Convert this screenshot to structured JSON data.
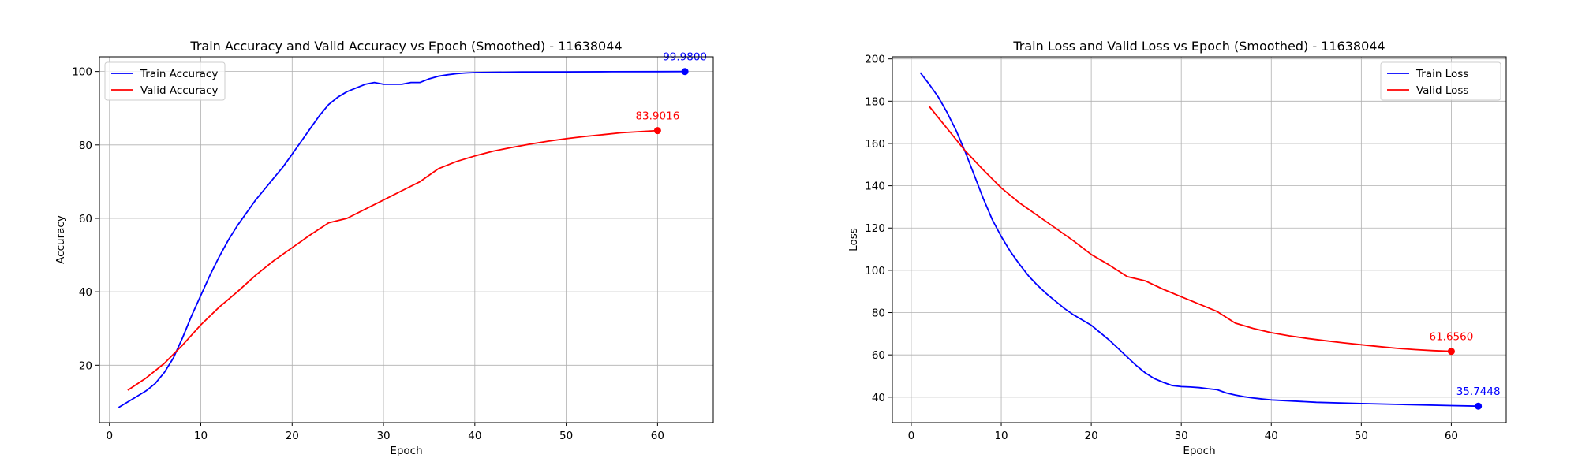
{
  "chart_data": [
    {
      "type": "line",
      "title": "Train Accuracy and Valid Accuracy vs Epoch (Smoothed) - 11638044",
      "xlabel": "Epoch",
      "ylabel": "Accuracy",
      "xlim": [
        -1.1,
        66.1
      ],
      "ylim": [
        4.4,
        104
      ],
      "xticks": [
        0,
        10,
        20,
        30,
        40,
        50,
        60
      ],
      "yticks": [
        20,
        40,
        60,
        80,
        100
      ],
      "grid": true,
      "legend": "top-left",
      "series": [
        {
          "name": "Train Accuracy",
          "color": "#0000ff",
          "x": [
            1,
            2,
            3,
            4,
            5,
            6,
            7,
            8,
            9,
            10,
            11,
            12,
            13,
            14,
            15,
            16,
            17,
            18,
            19,
            20,
            21,
            22,
            23,
            24,
            25,
            26,
            27,
            28,
            29,
            30,
            31,
            32,
            33,
            34,
            35,
            36,
            37,
            38,
            39,
            40,
            45,
            50,
            55,
            60,
            63
          ],
          "y": [
            8.5,
            10.0,
            11.5,
            13.0,
            15.0,
            18.0,
            22.0,
            27.5,
            33.5,
            39.0,
            44.5,
            49.5,
            54.0,
            58.0,
            61.5,
            65.0,
            68.0,
            71.0,
            74.0,
            77.5,
            81.0,
            84.5,
            88.0,
            91.0,
            93.0,
            94.5,
            95.5,
            96.5,
            97.0,
            96.5,
            96.5,
            96.5,
            97.0,
            97.0,
            98.0,
            98.7,
            99.1,
            99.4,
            99.6,
            99.7,
            99.85,
            99.9,
            99.95,
            99.97,
            99.98
          ],
          "end_label": "99.9800"
        },
        {
          "name": "Valid Accuracy",
          "color": "#ff0000",
          "x": [
            2,
            4,
            6,
            8,
            10,
            12,
            14,
            16,
            18,
            20,
            22,
            24,
            26,
            28,
            30,
            32,
            34,
            36,
            38,
            40,
            42,
            44,
            46,
            48,
            50,
            52,
            54,
            56,
            58,
            60
          ],
          "y": [
            13.2,
            16.5,
            20.5,
            25.5,
            31.0,
            35.8,
            40.0,
            44.5,
            48.5,
            52.0,
            55.5,
            58.8,
            60.0,
            62.5,
            65.0,
            67.5,
            70.0,
            73.5,
            75.5,
            77.0,
            78.3,
            79.3,
            80.2,
            81.0,
            81.7,
            82.3,
            82.8,
            83.3,
            83.6,
            83.9016
          ],
          "end_label": "83.9016"
        }
      ]
    },
    {
      "type": "line",
      "title": "Train Loss and Valid Loss vs Epoch (Smoothed) - 11638044",
      "xlabel": "Epoch",
      "ylabel": "Loss",
      "xlim": [
        -2.1,
        66.1
      ],
      "ylim": [
        28,
        201
      ],
      "xticks": [
        0,
        10,
        20,
        30,
        40,
        50,
        60
      ],
      "yticks": [
        40,
        60,
        80,
        100,
        120,
        140,
        160,
        180,
        200
      ],
      "grid": true,
      "legend": "top-right",
      "series": [
        {
          "name": "Train Loss",
          "color": "#0000ff",
          "x": [
            1,
            2,
            3,
            4,
            5,
            6,
            7,
            8,
            9,
            10,
            11,
            12,
            13,
            14,
            15,
            16,
            17,
            18,
            19,
            20,
            21,
            22,
            23,
            24,
            25,
            26,
            27,
            28,
            29,
            30,
            31,
            32,
            33,
            34,
            35,
            36,
            37,
            38,
            39,
            40,
            45,
            50,
            55,
            60,
            63
          ],
          "y": [
            193.5,
            188.0,
            182.0,
            174.5,
            166.0,
            156.0,
            145.0,
            134.0,
            124.0,
            116.0,
            109.0,
            103.0,
            97.5,
            93.0,
            89.0,
            85.5,
            82.0,
            79.0,
            76.5,
            74.0,
            70.5,
            67.0,
            63.0,
            59.0,
            55.0,
            51.5,
            48.8,
            47.0,
            45.5,
            45.0,
            44.8,
            44.5,
            44.0,
            43.5,
            42.0,
            41.0,
            40.2,
            39.6,
            39.1,
            38.7,
            37.6,
            37.0,
            36.5,
            36.0,
            35.7448
          ],
          "end_label": "35.7448"
        },
        {
          "name": "Valid Loss",
          "color": "#ff0000",
          "x": [
            2,
            4,
            6,
            8,
            10,
            12,
            14,
            16,
            18,
            20,
            22,
            24,
            26,
            28,
            30,
            32,
            34,
            36,
            38,
            40,
            42,
            44,
            46,
            48,
            50,
            52,
            54,
            56,
            58,
            60
          ],
          "y": [
            177.5,
            167.0,
            156.5,
            147.5,
            139.0,
            132.0,
            126.0,
            120.0,
            114.0,
            107.5,
            102.5,
            97.0,
            95.0,
            91.0,
            87.5,
            84.0,
            80.5,
            75.0,
            72.5,
            70.5,
            69.0,
            67.8,
            66.7,
            65.7,
            64.8,
            63.9,
            63.1,
            62.5,
            62.0,
            61.656
          ],
          "end_label": "61.6560"
        }
      ]
    }
  ]
}
